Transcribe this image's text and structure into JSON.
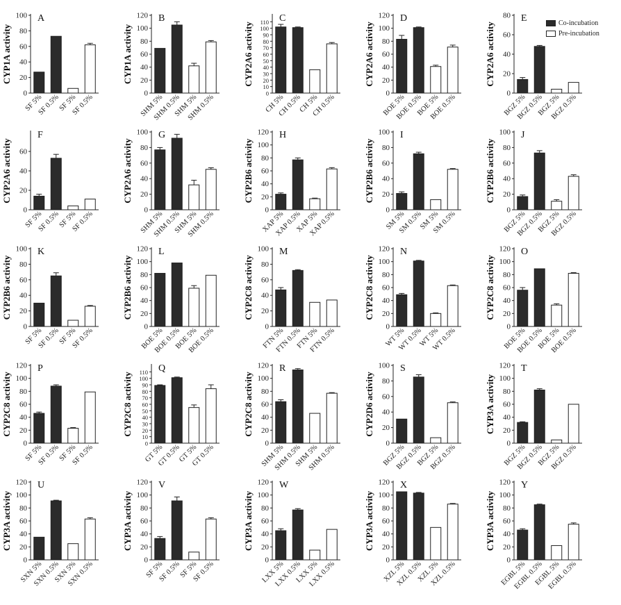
{
  "legend": {
    "co": "Co-incubation",
    "pre": "Pre-incubation"
  },
  "colors": {
    "co": "#2b2b2b",
    "pre": "#ffffff",
    "axis": "#222222"
  },
  "chart_data": [
    {
      "type": "bar",
      "letter": "A",
      "ylabel": "CYP1A activity",
      "ylim": [
        0,
        100
      ],
      "ticks": [
        0,
        20,
        40,
        60,
        80,
        100
      ],
      "categories": [
        "SF 5%",
        "SF 0.5%",
        "SF 5%",
        "SF 0.5%"
      ],
      "values": [
        27,
        73,
        6,
        62
      ],
      "errors": [
        0,
        0,
        0,
        2
      ],
      "groups": [
        "co",
        "co",
        "pre",
        "pre"
      ]
    },
    {
      "type": "bar",
      "letter": "B",
      "ylabel": "CYP1A activity",
      "ylim": [
        0,
        120
      ],
      "ticks": [
        0,
        20,
        40,
        60,
        80,
        100,
        120
      ],
      "categories": [
        "SHM 5%",
        "SHM 0.5%",
        "SHM 5%",
        "SHM 0.5%"
      ],
      "values": [
        69,
        105,
        42,
        79
      ],
      "errors": [
        0,
        5,
        4,
        2
      ],
      "groups": [
        "co",
        "co",
        "pre",
        "pre"
      ]
    },
    {
      "type": "bar",
      "letter": "C",
      "ylabel": "CYP2A6 activity",
      "ylim": [
        0,
        120
      ],
      "ticks": [
        0,
        10,
        20,
        30,
        40,
        50,
        60,
        70,
        80,
        90,
        100,
        110
      ],
      "categories": [
        "CH 5%",
        "CH 0.5%",
        "CH 5%",
        "CH 0.5%"
      ],
      "values": [
        102,
        101,
        36,
        76
      ],
      "errors": [
        4,
        1,
        0,
        2
      ],
      "groups": [
        "co",
        "co",
        "pre",
        "pre"
      ]
    },
    {
      "type": "bar",
      "letter": "D",
      "ylabel": "CYP2A6 activity",
      "ylim": [
        0,
        120
      ],
      "ticks": [
        0,
        20,
        40,
        60,
        80,
        100,
        120
      ],
      "categories": [
        "BOE 5%",
        "BOE 0.5%",
        "BOE 5%",
        "BOE 0.5%"
      ],
      "values": [
        83,
        101,
        41,
        71
      ],
      "errors": [
        6,
        1,
        2,
        3
      ],
      "groups": [
        "co",
        "co",
        "pre",
        "pre"
      ]
    },
    {
      "type": "bar",
      "letter": "E",
      "ylabel": "CYP2A6 activity",
      "ylim": [
        0,
        80
      ],
      "ticks": [
        0,
        20,
        40,
        60,
        80
      ],
      "categories": [
        "BGZ 5%",
        "BGZ 0.5%",
        "BGZ 5%",
        "BGZ 0.5%"
      ],
      "values": [
        14,
        48,
        4,
        11
      ],
      "errors": [
        2,
        1,
        0,
        0
      ],
      "groups": [
        "co",
        "co",
        "pre",
        "pre"
      ]
    },
    {
      "type": "bar",
      "letter": "F",
      "ylabel": "CYP2A6 activity",
      "ylim": [
        0,
        80
      ],
      "ticks": [
        0,
        20,
        40,
        60
      ],
      "categories": [
        "SF 5%",
        "SF 0.5%",
        "SF 5%",
        "SF 0.5%"
      ],
      "values": [
        14,
        53,
        4,
        11
      ],
      "errors": [
        2,
        4,
        0,
        0
      ],
      "groups": [
        "co",
        "co",
        "pre",
        "pre"
      ]
    },
    {
      "type": "bar",
      "letter": "G",
      "ylabel": "CYP2A6 activity",
      "ylim": [
        0,
        100
      ],
      "ticks": [
        0,
        20,
        40,
        60,
        80,
        100
      ],
      "categories": [
        "SHM 5%",
        "SHM 0.5%",
        "SHM 5%",
        "SHM 0.5%"
      ],
      "values": [
        77,
        92,
        32,
        52
      ],
      "errors": [
        3,
        5,
        6,
        2
      ],
      "groups": [
        "co",
        "co",
        "pre",
        "pre"
      ]
    },
    {
      "type": "bar",
      "letter": "H",
      "ylabel": "CYP2B6 activity",
      "ylim": [
        0,
        120
      ],
      "ticks": [
        0,
        20,
        40,
        60,
        80,
        100,
        120
      ],
      "categories": [
        "XAP 5%",
        "XAP 0.5%",
        "XAP 5%",
        "XAP 0.5%"
      ],
      "values": [
        24,
        77,
        17,
        63
      ],
      "errors": [
        2,
        3,
        1,
        2
      ],
      "groups": [
        "co",
        "co",
        "pre",
        "pre"
      ]
    },
    {
      "type": "bar",
      "letter": "I",
      "ylabel": "CYP2B6 activity",
      "ylim": [
        0,
        100
      ],
      "ticks": [
        0,
        20,
        40,
        60,
        80,
        100
      ],
      "categories": [
        "SM 5%",
        "SM 0.5%",
        "SM 5%",
        "SM 0.5%"
      ],
      "values": [
        21,
        72,
        13,
        52
      ],
      "errors": [
        2,
        2,
        0,
        1
      ],
      "groups": [
        "co",
        "co",
        "pre",
        "pre"
      ]
    },
    {
      "type": "bar",
      "letter": "J",
      "ylabel": "CYP2B6 activity",
      "ylim": [
        0,
        100
      ],
      "ticks": [
        0,
        20,
        40,
        60,
        80,
        100
      ],
      "categories": [
        "BGZ 5%",
        "BGZ 0.5%",
        "BGZ 5%",
        "BGZ 0.5%"
      ],
      "values": [
        17,
        73,
        11,
        43
      ],
      "errors": [
        2,
        3,
        2,
        2
      ],
      "groups": [
        "co",
        "co",
        "pre",
        "pre"
      ]
    },
    {
      "type": "bar",
      "letter": "K",
      "ylabel": "CYP2B6 activity",
      "ylim": [
        0,
        100
      ],
      "ticks": [
        0,
        20,
        40,
        60,
        80,
        100
      ],
      "categories": [
        "SF 5%",
        "SF 0.5%",
        "SF 5%",
        "SF 0.5%"
      ],
      "values": [
        30,
        65,
        8,
        26
      ],
      "errors": [
        0,
        4,
        0,
        1
      ],
      "groups": [
        "co",
        "co",
        "pre",
        "pre"
      ]
    },
    {
      "type": "bar",
      "letter": "L",
      "ylabel": "CYP2B6 activity",
      "ylim": [
        0,
        120
      ],
      "ticks": [
        0,
        20,
        40,
        60,
        80,
        100,
        120
      ],
      "categories": [
        "BOE 5%",
        "BOE 0.5%",
        "BOE 5%",
        "BOE 0.5%"
      ],
      "values": [
        82,
        98,
        59,
        79
      ],
      "errors": [
        0,
        0,
        4,
        0
      ],
      "groups": [
        "co",
        "co",
        "pre",
        "pre"
      ]
    },
    {
      "type": "bar",
      "letter": "M",
      "ylabel": "CYP2C8 activity",
      "ylim": [
        0,
        100
      ],
      "ticks": [
        0,
        20,
        40,
        60,
        80,
        100
      ],
      "categories": [
        "FTN 5%",
        "FTN 0.5%",
        "FTN 5%",
        "FTN 0.5%"
      ],
      "values": [
        47,
        72,
        31,
        34
      ],
      "errors": [
        3,
        1,
        0,
        0
      ],
      "groups": [
        "co",
        "co",
        "pre",
        "pre"
      ]
    },
    {
      "type": "bar",
      "letter": "N",
      "ylabel": "CYP2C8 activity",
      "ylim": [
        0,
        120
      ],
      "ticks": [
        0,
        20,
        40,
        60,
        80,
        100,
        120
      ],
      "categories": [
        "WT 5%",
        "WT 0.5%",
        "WT 5%",
        "WT 0.5%"
      ],
      "values": [
        49,
        101,
        20,
        63
      ],
      "errors": [
        2,
        1,
        1,
        1
      ],
      "groups": [
        "co",
        "co",
        "pre",
        "pre"
      ]
    },
    {
      "type": "bar",
      "letter": "O",
      "ylabel": "CYP2C8 activity",
      "ylim": [
        0,
        120
      ],
      "ticks": [
        0,
        20,
        40,
        60,
        80,
        100,
        120
      ],
      "categories": [
        "BOE 5%",
        "BOE 0.5%",
        "BOE 5%",
        "BOE 0.5%"
      ],
      "values": [
        56,
        89,
        33,
        82
      ],
      "errors": [
        4,
        0,
        2,
        1
      ],
      "groups": [
        "co",
        "co",
        "pre",
        "pre"
      ]
    },
    {
      "type": "bar",
      "letter": "P",
      "ylabel": "CYP2C8 activity",
      "ylim": [
        0,
        120
      ],
      "ticks": [
        0,
        20,
        40,
        60,
        80,
        100,
        120
      ],
      "categories": [
        "SF 5%",
        "SF 0.5%",
        "SF 5%",
        "SF 0.5%"
      ],
      "values": [
        46,
        88,
        23,
        79
      ],
      "errors": [
        2,
        2,
        1,
        0
      ],
      "groups": [
        "co",
        "co",
        "pre",
        "pre"
      ]
    },
    {
      "type": "bar",
      "letter": "Q",
      "ylabel": "CYP2C8 activity",
      "ylim": [
        0,
        120
      ],
      "ticks": [
        0,
        10,
        20,
        30,
        40,
        50,
        60,
        70,
        80,
        90,
        100,
        110
      ],
      "categories": [
        "GT 5%",
        "GT 0.5%",
        "GT 5%",
        "GT 0.5%"
      ],
      "values": [
        89,
        101,
        55,
        84
      ],
      "errors": [
        1,
        1,
        4,
        6
      ],
      "groups": [
        "co",
        "co",
        "pre",
        "pre"
      ]
    },
    {
      "type": "bar",
      "letter": "R",
      "ylabel": "CYP2C8 activity",
      "ylim": [
        0,
        120
      ],
      "ticks": [
        0,
        20,
        40,
        60,
        80,
        100,
        120
      ],
      "categories": [
        "SHM 5%",
        "SHM 0.5%",
        "SHM 5%",
        "SHM 0.5%"
      ],
      "values": [
        64,
        113,
        46,
        77
      ],
      "errors": [
        3,
        2,
        0,
        1
      ],
      "groups": [
        "co",
        "co",
        "pre",
        "pre"
      ]
    },
    {
      "type": "bar",
      "letter": "S",
      "ylabel": "CYP2D6 activity",
      "ylim": [
        0,
        100
      ],
      "ticks": [
        0,
        20,
        40,
        60,
        80,
        100
      ],
      "categories": [
        "BGZ 5%",
        "BGZ 0.5%",
        "BGZ 5%",
        "BGZ 0.5%"
      ],
      "values": [
        31,
        85,
        7,
        52
      ],
      "errors": [
        0,
        3,
        0,
        1
      ],
      "groups": [
        "co",
        "co",
        "pre",
        "pre"
      ]
    },
    {
      "type": "bar",
      "letter": "T",
      "ylabel": "CYP3A activity",
      "ylim": [
        0,
        120
      ],
      "ticks": [
        0,
        20,
        40,
        60,
        80,
        100,
        120
      ],
      "categories": [
        "BGZ 5%",
        "BGZ 0.5%",
        "BGZ 5%",
        "BGZ 0.5%"
      ],
      "values": [
        32,
        82,
        5,
        60
      ],
      "errors": [
        1,
        2,
        0,
        0
      ],
      "groups": [
        "co",
        "co",
        "pre",
        "pre"
      ]
    },
    {
      "type": "bar",
      "letter": "U",
      "ylabel": "CYP3A activity",
      "ylim": [
        0,
        120
      ],
      "ticks": [
        0,
        20,
        40,
        60,
        80,
        100,
        120
      ],
      "categories": [
        "SXN 5%",
        "SXN 0.5%",
        "SXN 5%",
        "SXN 0.5%"
      ],
      "values": [
        35,
        91,
        25,
        63
      ],
      "errors": [
        0,
        1,
        0,
        2
      ],
      "groups": [
        "co",
        "co",
        "pre",
        "pre"
      ]
    },
    {
      "type": "bar",
      "letter": "V",
      "ylabel": "CYP3A activity",
      "ylim": [
        0,
        120
      ],
      "ticks": [
        0,
        20,
        40,
        60,
        80,
        100,
        120
      ],
      "categories": [
        "SF 5%",
        "SF 0.5%",
        "SF 5%",
        "SF 0.5%"
      ],
      "values": [
        33,
        91,
        12,
        63
      ],
      "errors": [
        3,
        6,
        0,
        2
      ],
      "groups": [
        "co",
        "co",
        "pre",
        "pre"
      ]
    },
    {
      "type": "bar",
      "letter": "W",
      "ylabel": "CYP3A activity",
      "ylim": [
        0,
        120
      ],
      "ticks": [
        0,
        20,
        40,
        60,
        80,
        100,
        120
      ],
      "categories": [
        "LXX 5%",
        "LXX 0.5%",
        "LXX 5%",
        "LXX 0.5%"
      ],
      "values": [
        45,
        77,
        15,
        47
      ],
      "errors": [
        3,
        2,
        0,
        0
      ],
      "groups": [
        "co",
        "co",
        "pre",
        "pre"
      ]
    },
    {
      "type": "bar",
      "letter": "X",
      "ylabel": "CYP3A activity",
      "ylim": [
        0,
        120
      ],
      "ticks": [
        0,
        20,
        40,
        60,
        80,
        100,
        120
      ],
      "categories": [
        "XZL 5%",
        "XZL 0.5%",
        "XZL 5%",
        "XZL 0.5%"
      ],
      "values": [
        105,
        103,
        50,
        86
      ],
      "errors": [
        0,
        1,
        0,
        1
      ],
      "groups": [
        "co",
        "co",
        "pre",
        "pre"
      ]
    },
    {
      "type": "bar",
      "letter": "Y",
      "ylabel": "CYP3A activity",
      "ylim": [
        0,
        120
      ],
      "ticks": [
        0,
        20,
        40,
        60,
        80,
        100,
        120
      ],
      "categories": [
        "EGBL 5%",
        "EGBL 0.5%",
        "EGBL 5%",
        "EGBL 0.5%"
      ],
      "values": [
        46,
        85,
        22,
        55
      ],
      "errors": [
        2,
        1,
        0,
        2
      ],
      "groups": [
        "co",
        "co",
        "pre",
        "pre"
      ]
    }
  ]
}
